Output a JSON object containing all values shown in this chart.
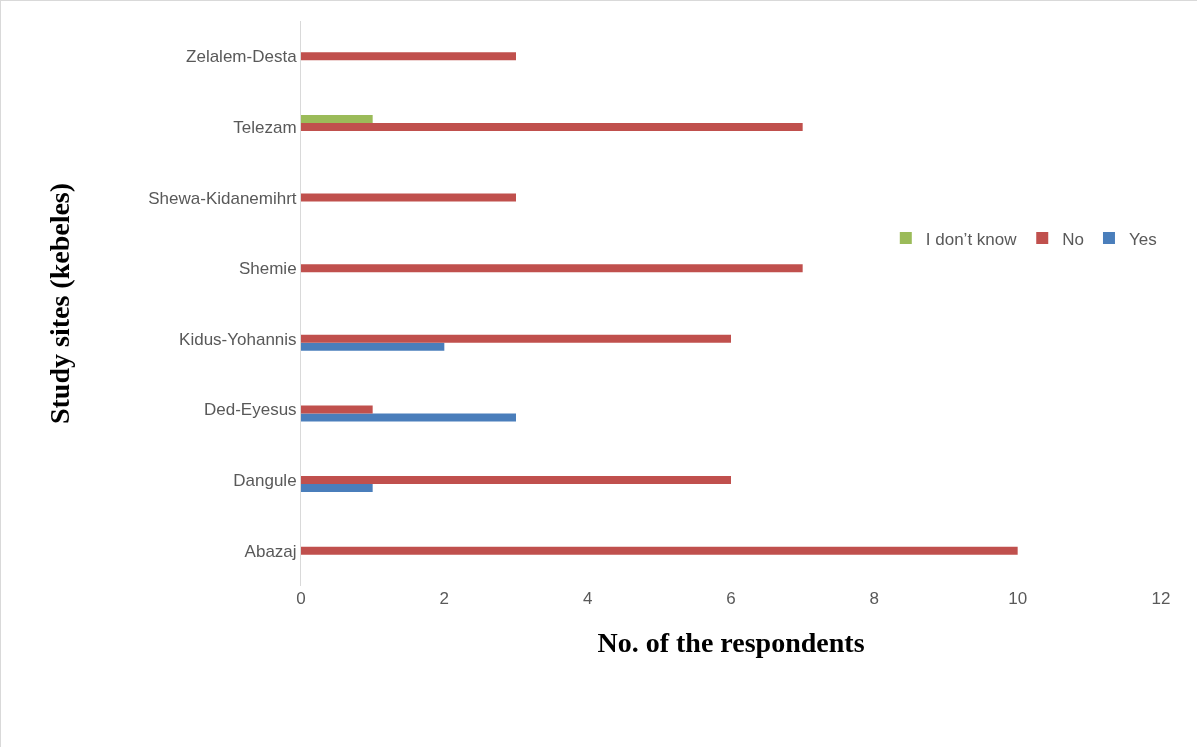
{
  "chart_data": {
    "type": "bar",
    "orientation": "horizontal",
    "xlabel": "No. of the respondents",
    "ylabel": "Study sites (kebeles)",
    "categories": [
      "Zelalem-Desta",
      "Telezam",
      "Shewa-Kidanemihrt",
      "Shemie",
      "Kidus-Yohannis",
      "Ded-Eyesus",
      "Dangule",
      "Abazaj"
    ],
    "series": [
      {
        "name": "Yes",
        "color": "#4a7ebb",
        "values": [
          0,
          0,
          0,
          0,
          2,
          3,
          1,
          0
        ]
      },
      {
        "name": "No",
        "color": "#c0504d",
        "values": [
          3,
          7,
          3,
          7,
          6,
          1,
          6,
          10
        ]
      },
      {
        "name": "I don’t know",
        "color": "#9bbb59",
        "values": [
          0,
          1,
          0,
          0,
          0,
          0,
          0,
          0
        ]
      }
    ],
    "xlim": [
      0,
      12
    ],
    "xticks": [
      0,
      2,
      4,
      6,
      8,
      10,
      12
    ],
    "grid": false,
    "legend": "right"
  }
}
